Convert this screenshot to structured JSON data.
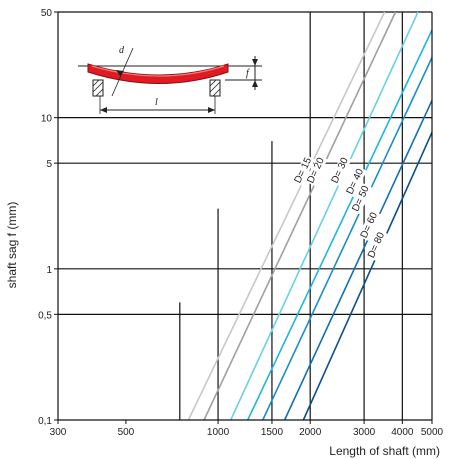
{
  "chart_data": {
    "type": "line",
    "xlabel": "Length of shaft (mm)",
    "ylabel": "shaft sag f (mm)",
    "x_scale": "log",
    "y_scale": "log",
    "xlim": [
      300,
      5000
    ],
    "ylim": [
      0.1,
      50
    ],
    "x_ticks": [
      {
        "value": 300,
        "label": "300"
      },
      {
        "value": 500,
        "label": "500"
      },
      {
        "value": 1000,
        "label": "1000"
      },
      {
        "value": 1500,
        "label": "1500"
      },
      {
        "value": 2000,
        "label": "2000"
      },
      {
        "value": 3000,
        "label": "3000"
      },
      {
        "value": 4000,
        "label": "4000"
      },
      {
        "value": 5000,
        "label": "5000"
      }
    ],
    "y_ticks": [
      {
        "value": 0.1,
        "label": "0,1"
      },
      {
        "value": 0.5,
        "label": "0,5"
      },
      {
        "value": 1,
        "label": "1"
      },
      {
        "value": 5,
        "label": "5"
      },
      {
        "value": 10,
        "label": "10"
      },
      {
        "value": 50,
        "label": "50"
      }
    ],
    "series": [
      {
        "name": "D= 15",
        "color": "#c8c8c8",
        "points": [
          [
            800,
            0.1
          ],
          [
            3500,
            50
          ]
        ]
      },
      {
        "name": "D= 20",
        "color": "#a0a0a0",
        "points": [
          [
            900,
            0.1
          ],
          [
            3800,
            50
          ]
        ]
      },
      {
        "name": "D= 30",
        "color": "#6ad0e8",
        "points": [
          [
            1100,
            0.1
          ],
          [
            4500,
            50
          ]
        ]
      },
      {
        "name": "D= 40",
        "color": "#1eb6dc",
        "points": [
          [
            1250,
            0.1
          ],
          [
            5000,
            38
          ]
        ]
      },
      {
        "name": "D= 50",
        "color": "#1a8ec8",
        "points": [
          [
            1400,
            0.1
          ],
          [
            5000,
            25
          ]
        ]
      },
      {
        "name": "D= 60",
        "color": "#126fb0",
        "points": [
          [
            1650,
            0.1
          ],
          [
            5000,
            13
          ]
        ]
      },
      {
        "name": "D= 80",
        "color": "#0a4f90",
        "points": [
          [
            1900,
            0.1
          ],
          [
            5000,
            8
          ]
        ]
      }
    ],
    "guide_lines": [
      {
        "x": 750,
        "y_top": 0.6
      },
      {
        "x": 1000,
        "y_top": 2.5
      },
      {
        "x": 1500,
        "y_top": 7
      },
      {
        "x": 2000,
        "y_top": 50
      },
      {
        "x": 3000,
        "y_top": 50
      },
      {
        "x": 4000,
        "y_top": 50
      }
    ],
    "grid": "horizontal-major",
    "inset": {
      "type": "diagram",
      "labels": {
        "diameter": "d",
        "sag": "f",
        "length": "l"
      },
      "shaft_color": "#e01b22"
    }
  }
}
